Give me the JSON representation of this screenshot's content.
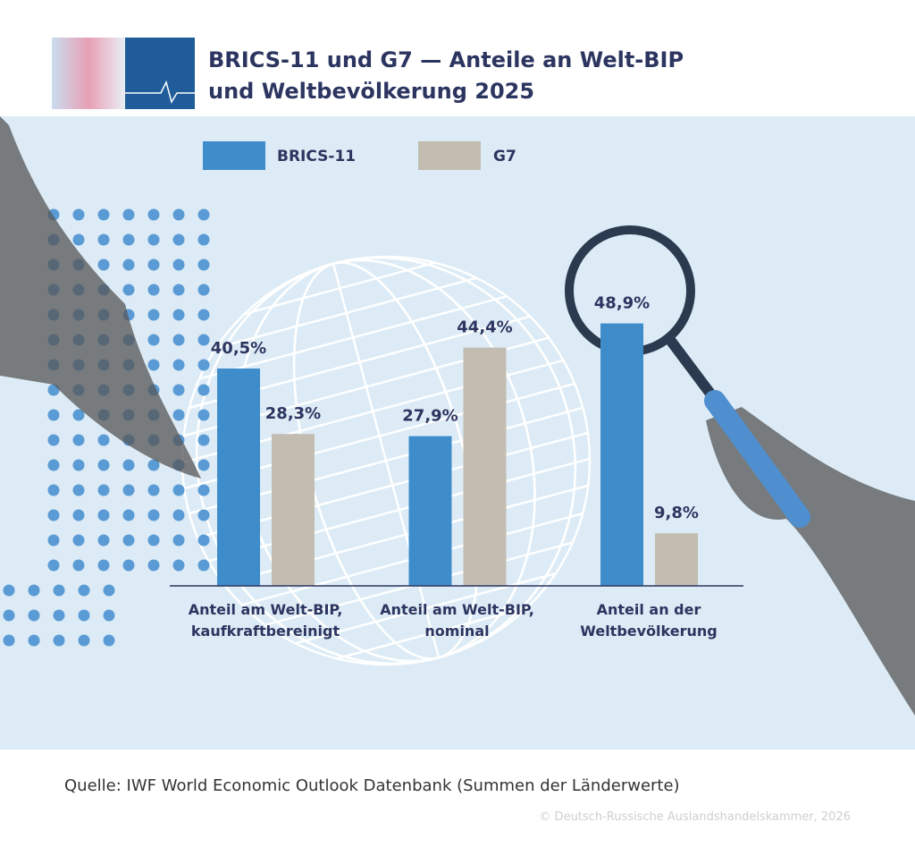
{
  "chart_data": {
    "type": "bar",
    "title": "BRICS-11 und G7 — Anteile an Welt-BIP und Weltbevölkerung 2025",
    "categories": [
      "Anteil am Welt-BIP, kaufkraftbereinigt",
      "Anteil am Welt-BIP, nominal",
      "Anteil an der Weltbevölkerung"
    ],
    "series": [
      {
        "name": "BRICS-11",
        "color": "#3f8ccb",
        "values": [
          40.5,
          27.9,
          48.9
        ],
        "value_labels": [
          "40,5%",
          "27,9%",
          "48,9%"
        ]
      },
      {
        "name": "G7",
        "color": "#c3bdb1",
        "values": [
          28.3,
          44.4,
          9.8
        ],
        "value_labels": [
          "28,3%",
          "44,4%",
          "9,8%"
        ]
      }
    ],
    "source": "Quelle: IWF World Economic Outlook Datenbank (Summen der Länderwerte)",
    "copyright": "© Deutsch-Russische Auslandshandelskammer, 2026"
  }
}
